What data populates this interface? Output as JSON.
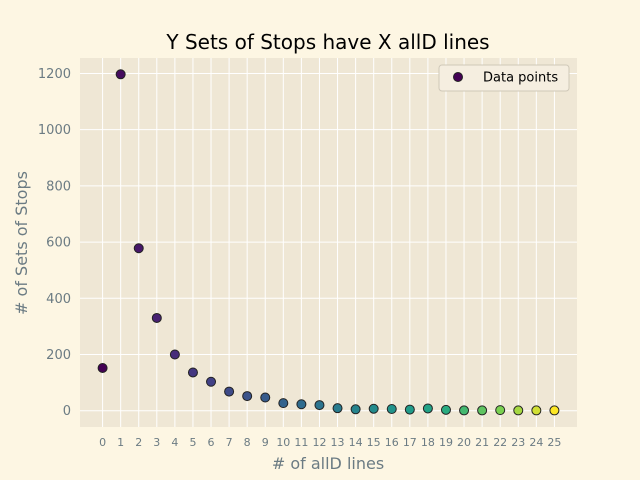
{
  "chart_data": {
    "type": "scatter",
    "title": "Y Sets of Stops have X allD lines",
    "xlabel": "# of allD lines",
    "ylabel": "# of Sets of Stops",
    "x": [
      0,
      1,
      2,
      3,
      4,
      5,
      6,
      7,
      8,
      9,
      10,
      11,
      12,
      13,
      14,
      15,
      16,
      17,
      18,
      19,
      20,
      21,
      22,
      23,
      24,
      25
    ],
    "y": [
      152,
      1197,
      578,
      330,
      200,
      136,
      103,
      68,
      52,
      47,
      27,
      23,
      20,
      9,
      5,
      7,
      6,
      4,
      8,
      3,
      1,
      1,
      2,
      1,
      1,
      1
    ],
    "x_ticks": [
      0,
      1,
      2,
      3,
      4,
      5,
      6,
      7,
      8,
      9,
      10,
      11,
      12,
      13,
      14,
      15,
      16,
      17,
      18,
      19,
      20,
      21,
      22,
      23,
      24,
      25
    ],
    "y_ticks": [
      0,
      200,
      400,
      600,
      800,
      1000,
      1200
    ],
    "xlim": [
      -1.25,
      26.25
    ],
    "ylim": [
      -58,
      1255
    ],
    "grid": true,
    "legend": {
      "entries": [
        "Data points"
      ],
      "placement": "top-right"
    },
    "colormap": "viridis",
    "colors": {
      "figure_background": "#fdf6e3",
      "plot_background": "#efe7d5",
      "grid": "#ffffff",
      "marker_edge": "#222222",
      "text_secondary": "#6b7b83"
    }
  }
}
